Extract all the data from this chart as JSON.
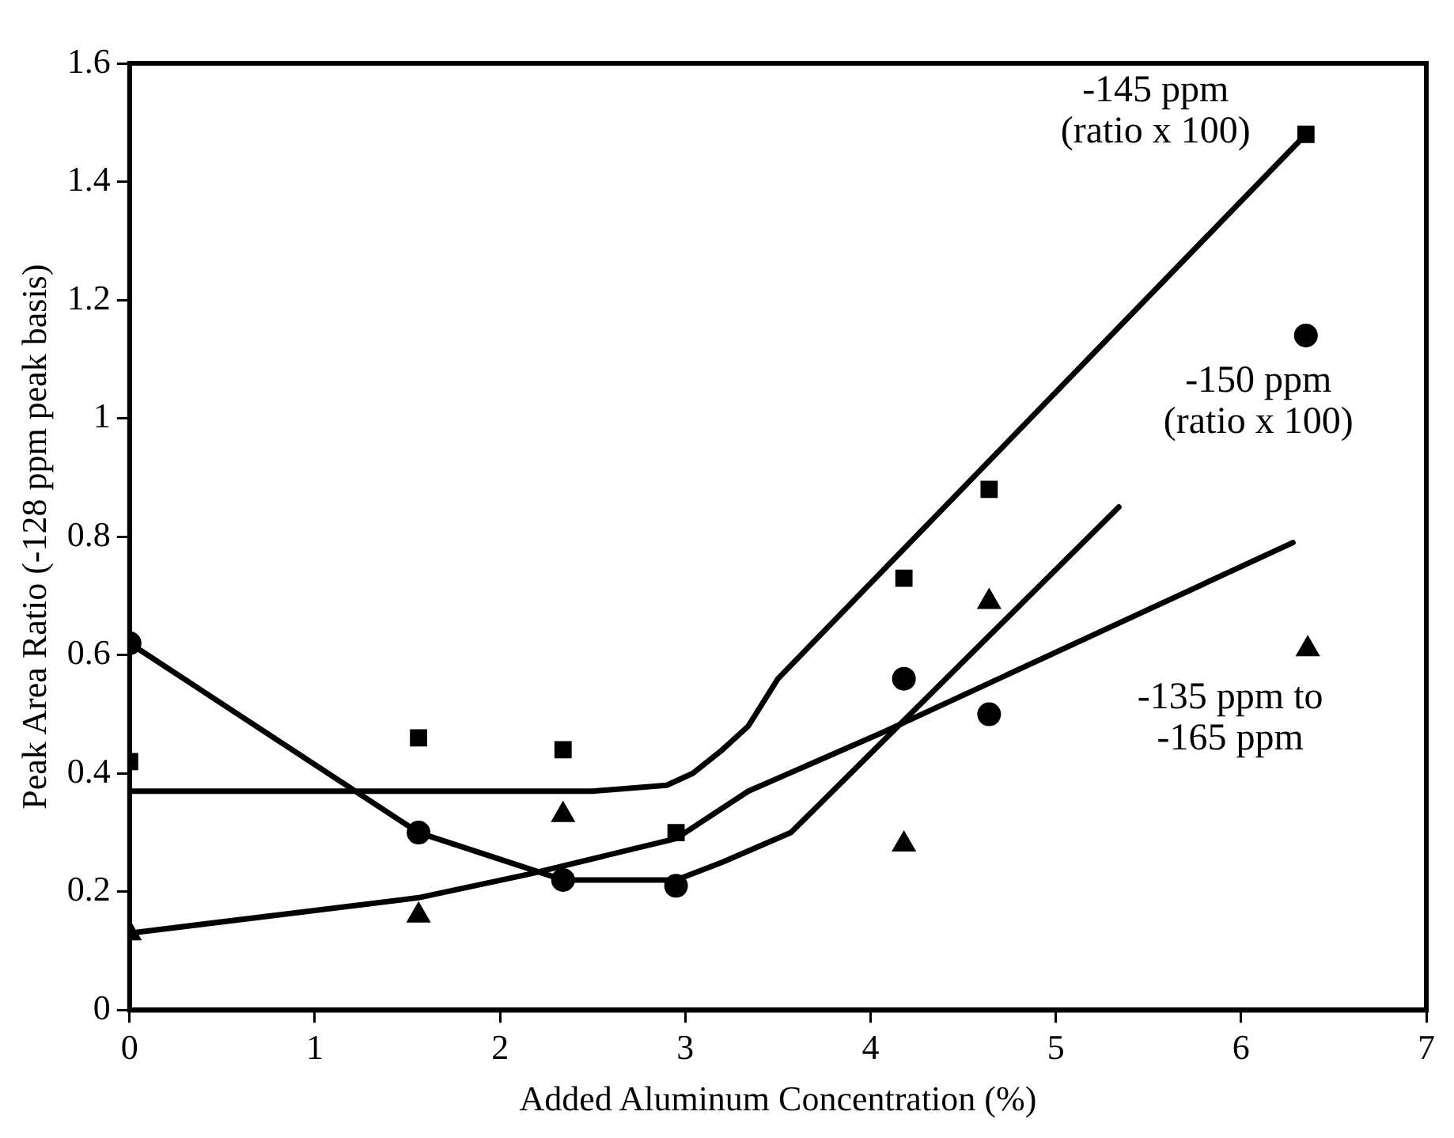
{
  "chart_data": {
    "type": "scatter",
    "xlabel": "Added Aluminum Concentration (%)",
    "ylabel": "Peak Area Ratio (-128 ppm peak basis)",
    "xlim": [
      0,
      7
    ],
    "xticks": [
      0,
      1,
      2,
      3,
      4,
      5,
      6,
      7
    ],
    "ylim": [
      0,
      1.6
    ],
    "yticks": [
      0,
      0.2,
      0.4,
      0.6,
      0.8,
      1,
      1.2,
      1.4,
      1.6
    ],
    "grid": false,
    "legend": false,
    "series": [
      {
        "name": "-145 ppm\n(ratio x 100)",
        "marker": "square",
        "color": "#000000",
        "x": [
          0,
          1.56,
          2.34,
          2.95,
          4.18,
          4.64,
          6.35
        ],
        "values": [
          0.42,
          0.46,
          0.44,
          0.3,
          0.73,
          0.88,
          1.48
        ]
      },
      {
        "name": "-150 ppm\n(ratio x 100)",
        "marker": "circle",
        "color": "#000000",
        "x": [
          0,
          1.56,
          2.34,
          2.95,
          4.18,
          4.64,
          6.35
        ],
        "values": [
          0.62,
          0.3,
          0.22,
          0.21,
          0.56,
          0.5,
          1.14
        ]
      },
      {
        "name": "-135 ppm to\n-165 ppm",
        "marker": "triangle",
        "color": "#000000",
        "x": [
          0,
          1.56,
          2.34,
          4.18,
          4.64,
          6.36
        ],
        "values": [
          0.13,
          0.16,
          0.33,
          0.28,
          0.69,
          0.61
        ]
      },
      {
        "type": "line",
        "marker": "none",
        "color": "#000000",
        "x": [
          0,
          2.5,
          2.9,
          3.04,
          3.2,
          3.34,
          3.5,
          6.35
        ],
        "values": [
          0.37,
          0.37,
          0.38,
          0.4,
          0.44,
          0.48,
          0.56,
          1.48
        ]
      },
      {
        "type": "line",
        "marker": "none",
        "color": "#000000",
        "x": [
          0,
          1.56,
          2.34,
          2.95,
          3.2,
          3.57,
          5.34
        ],
        "values": [
          0.62,
          0.3,
          0.22,
          0.22,
          0.25,
          0.3,
          0.85
        ]
      },
      {
        "type": "line",
        "marker": "none",
        "color": "#000000",
        "x": [
          0,
          1.56,
          2.16,
          2.95,
          3.34,
          4.07,
          6.28
        ],
        "values": [
          0.13,
          0.19,
          0.23,
          0.29,
          0.37,
          0.47,
          0.79
        ]
      }
    ]
  }
}
